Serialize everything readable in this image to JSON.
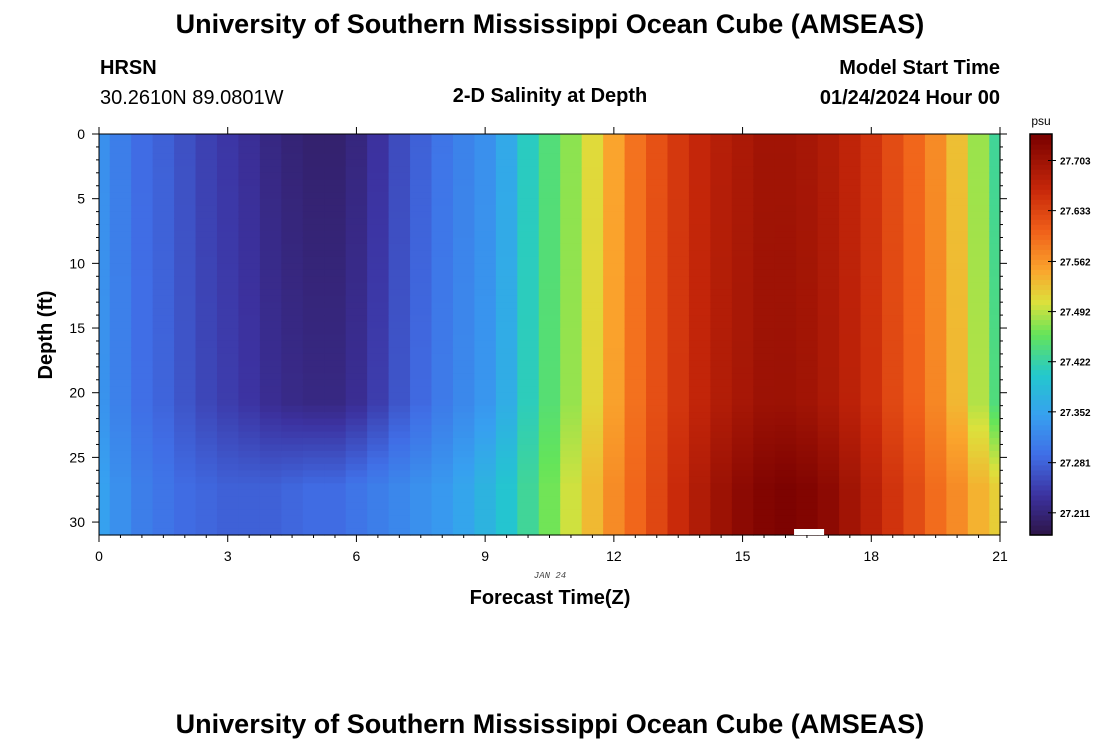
{
  "header": {
    "title": "University of Southern Mississippi Ocean Cube (AMSEAS)",
    "station": "HRSN",
    "coords": "30.2610N  89.0801W",
    "subtitle": "2-D Salinity at Depth",
    "model_start_label": "Model Start Time",
    "model_start_value": "01/24/2024 Hour 00"
  },
  "footer": {
    "title": "University of Southern Mississippi Ocean Cube (AMSEAS)"
  },
  "chart_data": {
    "type": "heatmap",
    "title": "2-D Salinity at Depth",
    "xlabel": "Forecast Time(Z)",
    "ylabel": "Depth (ft)",
    "date_label": "JAN 24",
    "xlim": [
      0,
      21
    ],
    "ylim": [
      31,
      0
    ],
    "x_ticks": [
      "0",
      "3",
      "6",
      "9",
      "12",
      "15",
      "18",
      "21"
    ],
    "y_ticks": [
      "0",
      "5",
      "10",
      "15",
      "20",
      "25",
      "30"
    ],
    "hours": [
      0,
      0.5,
      1,
      1.5,
      2,
      2.5,
      3,
      3.5,
      4,
      4.5,
      5,
      5.5,
      6,
      6.5,
      7,
      7.5,
      8,
      8.5,
      9,
      9.5,
      10,
      10.5,
      11,
      11.5,
      12,
      12.5,
      13,
      13.5,
      14,
      14.5,
      15,
      15.5,
      16,
      16.5,
      17,
      17.5,
      18,
      18.5,
      19,
      19.5,
      20,
      20.5,
      21
    ],
    "surface_salinity": [
      27.33,
      27.31,
      27.29,
      27.28,
      27.265,
      27.25,
      27.24,
      27.23,
      27.218,
      27.21,
      27.205,
      27.205,
      27.215,
      27.235,
      27.26,
      27.28,
      27.3,
      27.315,
      27.33,
      27.36,
      27.41,
      27.445,
      27.475,
      27.51,
      27.55,
      27.59,
      27.62,
      27.645,
      27.665,
      27.68,
      27.69,
      27.7,
      27.7,
      27.695,
      27.685,
      27.67,
      27.65,
      27.625,
      27.6,
      27.57,
      27.53,
      27.48,
      27.43
    ],
    "bottom_salinity": [
      27.35,
      27.33,
      27.31,
      27.3,
      27.29,
      27.285,
      27.28,
      27.28,
      27.28,
      27.285,
      27.29,
      27.29,
      27.3,
      27.31,
      27.32,
      27.33,
      27.34,
      27.355,
      27.375,
      27.4,
      27.43,
      27.465,
      27.5,
      27.535,
      27.57,
      27.6,
      27.63,
      27.66,
      27.685,
      27.705,
      27.72,
      27.73,
      27.735,
      27.73,
      27.72,
      27.7,
      27.675,
      27.65,
      27.625,
      27.595,
      27.57,
      27.54,
      27.52
    ],
    "mixed_layer_depth_ft": 20.5,
    "unit": "psu",
    "colorbar": {
      "min": 27.18,
      "max": 27.74,
      "tick_values": [
        27.211,
        27.281,
        27.352,
        27.422,
        27.492,
        27.562,
        27.633,
        27.703
      ],
      "tick_labels": [
        "27.211",
        "27.281",
        "27.352",
        "27.422",
        "27.492",
        "27.562",
        "27.633",
        "27.703"
      ]
    }
  }
}
